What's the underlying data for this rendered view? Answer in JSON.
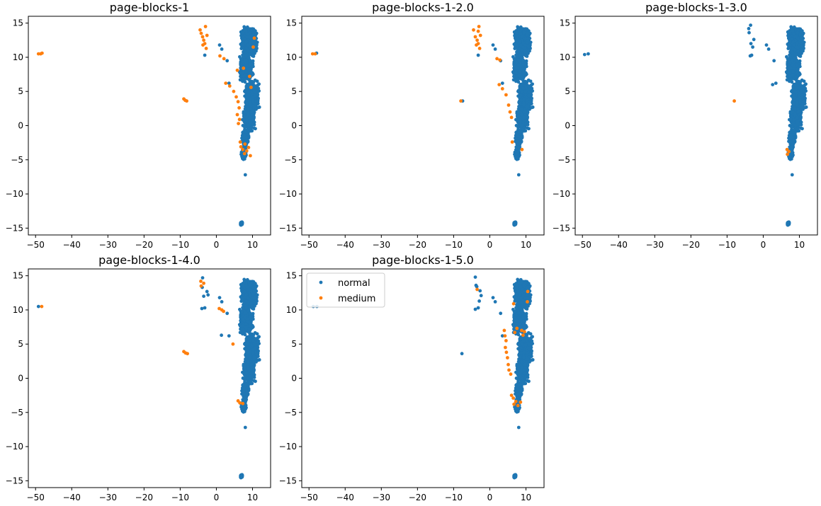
{
  "figure": {
    "colors": {
      "normal": "#1f77b4",
      "medium": "#ff7f0e"
    }
  },
  "chart_data": [
    {
      "type": "scatter",
      "title": "page-blocks-1",
      "xlim": [
        -52,
        15
      ],
      "ylim": [
        -16,
        16
      ],
      "xticks": [
        -50,
        -40,
        -30,
        -20,
        -10,
        0,
        10
      ],
      "yticks": [
        -15,
        -10,
        -5,
        0,
        5,
        10,
        15
      ],
      "series": [
        {
          "name": "normal",
          "color": "#1f77b4"
        },
        {
          "name": "medium",
          "color": "#ff7f0e",
          "points": [
            [
              -49.2,
              10.5
            ],
            [
              -48.6,
              10.5
            ],
            [
              -48.2,
              10.6
            ],
            [
              -9.0,
              3.9
            ],
            [
              -8.6,
              3.7
            ],
            [
              -8.2,
              3.6
            ],
            [
              -4.5,
              14.0
            ],
            [
              -4.2,
              13.5
            ],
            [
              -3.8,
              13.0
            ],
            [
              -3.5,
              12.5
            ],
            [
              -3.2,
              12.0
            ],
            [
              -3.0,
              14.5
            ],
            [
              -2.6,
              13.2
            ],
            [
              -3.7,
              11.8
            ],
            [
              -2.8,
              11.3
            ],
            [
              1.0,
              10.2
            ],
            [
              2.1,
              9.8
            ],
            [
              5.8,
              8.1
            ],
            [
              7.5,
              8.4
            ],
            [
              9.2,
              7.2
            ],
            [
              2.6,
              6.2
            ],
            [
              3.7,
              5.8
            ],
            [
              4.8,
              5.0
            ],
            [
              5.5,
              4.2
            ],
            [
              6.0,
              3.5
            ],
            [
              6.3,
              2.6
            ],
            [
              5.8,
              1.6
            ],
            [
              6.4,
              0.9
            ],
            [
              6.6,
              -2.4
            ],
            [
              6.8,
              -3.1
            ],
            [
              7.3,
              -3.5
            ],
            [
              7.8,
              -4.1
            ],
            [
              8.4,
              -3.7
            ],
            [
              8.9,
              -3.2
            ],
            [
              7.9,
              -2.7
            ],
            [
              9.4,
              -4.4
            ],
            [
              10.5,
              12.8
            ],
            [
              10.2,
              11.5
            ],
            [
              9.6,
              5.6
            ],
            [
              6.1,
              0.3
            ]
          ]
        }
      ]
    },
    {
      "type": "scatter",
      "title": "page-blocks-1-2.0",
      "xlim": [
        -52,
        15
      ],
      "ylim": [
        -16,
        16
      ],
      "xticks": [
        -50,
        -40,
        -30,
        -20,
        -10,
        0,
        10
      ],
      "yticks": [
        -15,
        -10,
        -5,
        0,
        5,
        10,
        15
      ],
      "series": [
        {
          "name": "normal",
          "color": "#1f77b4"
        },
        {
          "name": "medium",
          "color": "#ff7f0e",
          "points": [
            [
              -49.0,
              10.5
            ],
            [
              -48.3,
              10.5
            ],
            [
              -8.0,
              3.6
            ],
            [
              -4.5,
              14.0
            ],
            [
              -4.0,
              13.0
            ],
            [
              -3.5,
              12.5
            ],
            [
              -3.2,
              12.0
            ],
            [
              -3.0,
              14.5
            ],
            [
              -2.6,
              13.2
            ],
            [
              -3.7,
              11.8
            ],
            [
              -2.8,
              11.3
            ],
            [
              -3.2,
              13.8
            ],
            [
              2.0,
              9.8
            ],
            [
              2.8,
              9.6
            ],
            [
              2.6,
              6.0
            ],
            [
              3.5,
              5.4
            ],
            [
              4.5,
              4.5
            ],
            [
              5.2,
              3.0
            ],
            [
              5.6,
              2.0
            ],
            [
              6.0,
              1.2
            ],
            [
              6.2,
              -2.4
            ],
            [
              8.9,
              -3.5
            ]
          ]
        }
      ]
    },
    {
      "type": "scatter",
      "title": "page-blocks-1-3.0",
      "xlim": [
        -52,
        15
      ],
      "ylim": [
        -16,
        16
      ],
      "xticks": [
        -50,
        -40,
        -30,
        -20,
        -10,
        0,
        10
      ],
      "yticks": [
        -15,
        -10,
        -5,
        0,
        5,
        10,
        15
      ],
      "series": [
        {
          "name": "normal",
          "color": "#1f77b4"
        },
        {
          "name": "medium",
          "color": "#ff7f0e",
          "points": [
            [
              -8.0,
              3.6
            ],
            [
              6.6,
              -3.5
            ],
            [
              7.1,
              -3.8
            ],
            [
              6.7,
              -4.2
            ]
          ]
        }
      ]
    },
    {
      "type": "scatter",
      "title": "page-blocks-1-4.0",
      "xlim": [
        -52,
        15
      ],
      "ylim": [
        -16,
        16
      ],
      "xticks": [
        -50,
        -40,
        -30,
        -20,
        -10,
        0,
        10
      ],
      "yticks": [
        -15,
        -10,
        -5,
        0,
        5,
        10,
        15
      ],
      "series": [
        {
          "name": "normal",
          "color": "#1f77b4"
        },
        {
          "name": "medium",
          "color": "#ff7f0e",
          "points": [
            [
              -48.3,
              10.5
            ],
            [
              -9.0,
              3.9
            ],
            [
              -8.5,
              3.7
            ],
            [
              -8.0,
              3.6
            ],
            [
              -4.3,
              14.2
            ],
            [
              -4.2,
              13.5
            ],
            [
              -3.5,
              13.9
            ],
            [
              0.8,
              10.2
            ],
            [
              1.5,
              10.0
            ],
            [
              2.0,
              9.8
            ],
            [
              4.6,
              5.0
            ],
            [
              6.0,
              -3.3
            ],
            [
              6.5,
              -3.6
            ],
            [
              7.3,
              -3.7
            ]
          ]
        }
      ]
    },
    {
      "type": "scatter",
      "title": "page-blocks-1-5.0",
      "xlim": [
        -52,
        15
      ],
      "ylim": [
        -16,
        16
      ],
      "xticks": [
        -50,
        -40,
        -30,
        -20,
        -10,
        0,
        10
      ],
      "yticks": [
        -15,
        -10,
        -5,
        0,
        5,
        10,
        15
      ],
      "legend": {
        "location": "upper-left",
        "entries": [
          "normal",
          "medium"
        ]
      },
      "series": [
        {
          "name": "normal",
          "color": "#1f77b4"
        },
        {
          "name": "medium",
          "color": "#ff7f0e",
          "points": [
            [
              4.0,
              7.0
            ],
            [
              4.2,
              6.2
            ],
            [
              4.5,
              5.5
            ],
            [
              4.3,
              4.5
            ],
            [
              4.6,
              3.8
            ],
            [
              4.9,
              3.0
            ],
            [
              5.1,
              2.0
            ],
            [
              5.3,
              1.2
            ],
            [
              5.8,
              0.6
            ],
            [
              6.0,
              -2.5
            ],
            [
              6.5,
              -2.9
            ],
            [
              7.2,
              -3.4
            ],
            [
              6.7,
              -3.8
            ],
            [
              7.8,
              -4.0
            ],
            [
              8.5,
              -3.5
            ],
            [
              10.5,
              12.7
            ],
            [
              10.4,
              11.2
            ],
            [
              9.6,
              6.8
            ],
            [
              8.8,
              7.0
            ],
            [
              7.5,
              7.3
            ],
            [
              6.9,
              6.7
            ],
            [
              9.2,
              6.3
            ],
            [
              -3.5,
              13.0
            ],
            [
              6.6,
              10.9
            ]
          ]
        }
      ]
    }
  ]
}
